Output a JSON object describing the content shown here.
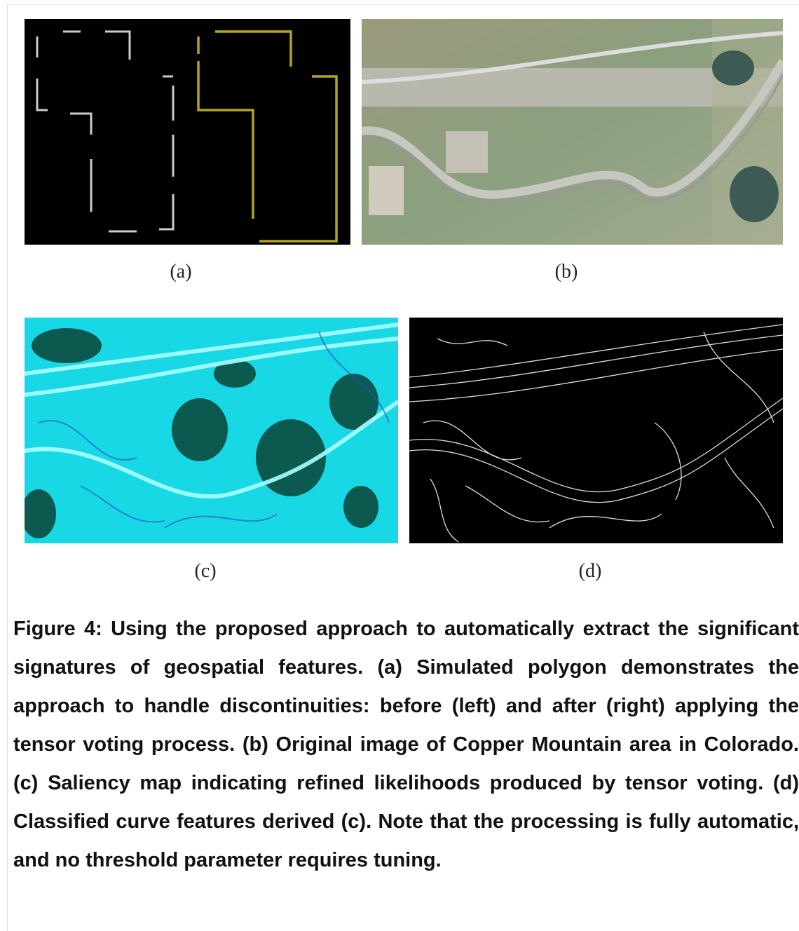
{
  "figure": {
    "panels": [
      {
        "label": "(a)"
      },
      {
        "label": "(b)"
      },
      {
        "label": "(c)"
      },
      {
        "label": "(d)"
      }
    ],
    "caption": "Figure 4: Using the proposed approach to automatically extract the significant signatures of geospatial features. (a) Simulated polygon demonstrates the approach to handle discontinuities: before (left) and after (right) applying the tensor voting process.  (b) Original image of Copper Mountain area in Colorado. (c) Saliency map indicating refined likelihoods produced by tensor voting. (d) Classified curve features derived (c). Note that the processing is fully automatic, and no threshold parameter requires tuning."
  }
}
